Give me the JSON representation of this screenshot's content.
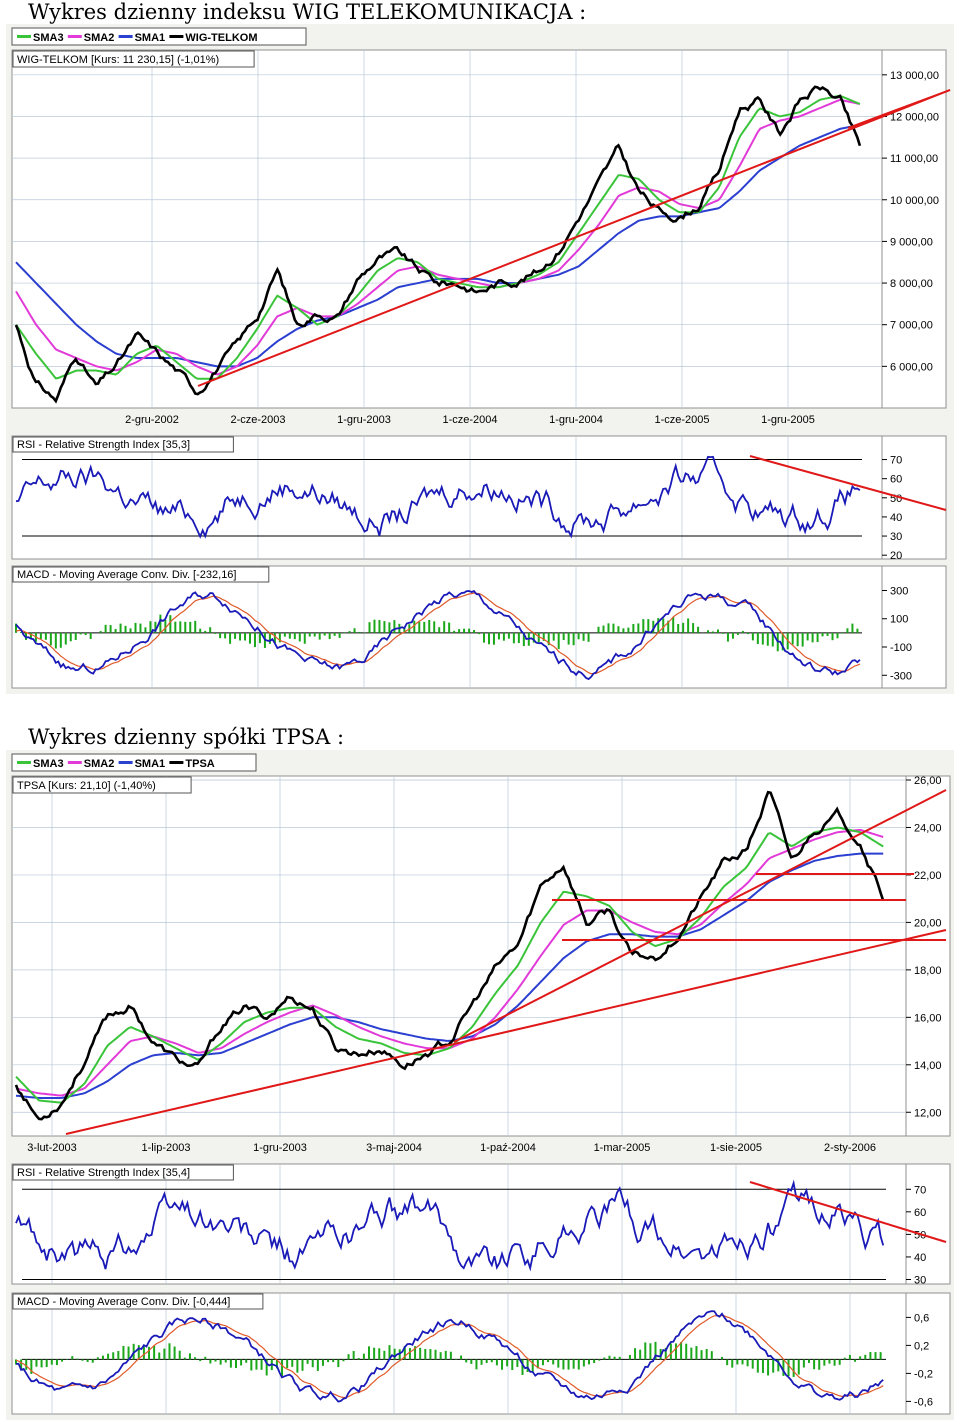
{
  "headings": {
    "wig": "Wykres dzienny indeksu WIG TELEKOMUNIKACJA :",
    "tpsa": "Wykres dzienny spółki TPSA :"
  },
  "colors": {
    "price": "#000000",
    "sma1": "#2b3fd0",
    "sma2": "#e23ad8",
    "sma3": "#3ac43a",
    "trendline": "#e01818",
    "rsi_line": "#1a1ab8",
    "macd_line": "#1a1ab8",
    "macd_signal": "#e05a2a",
    "histogram": "#1aa81a",
    "grid": "#b8c8d8"
  },
  "charts": [
    {
      "id": "wig",
      "legend": [
        "SMA3",
        "SMA2",
        "SMA1",
        "WIG-TELKOM"
      ],
      "price_label": "WIG-TELKOM [Kurs: 11 230,15] (-1,01%)",
      "y_ticks": [
        "13 000,00",
        "12 000,00",
        "11 000,00",
        "10 000,00",
        "9 000,00",
        "8 000,00",
        "7 000,00",
        "6 000,00"
      ],
      "x_ticks": [
        "2-gru-2002",
        "2-cze-2003",
        "1-gru-2003",
        "1-cze-2004",
        "1-gru-2004",
        "1-cze-2005",
        "1-gru-2005"
      ],
      "rsi_label": "RSI - Relative Strength Index [35,3]",
      "rsi_ticks": [
        "70",
        "60",
        "50",
        "40",
        "30",
        "20"
      ],
      "macd_label": "MACD - Moving Average Conv. Div. [-232,16]",
      "macd_ticks": [
        "300",
        "100",
        "-100",
        "-300"
      ]
    },
    {
      "id": "tpsa",
      "legend": [
        "SMA3",
        "SMA2",
        "SMA1",
        "TPSA"
      ],
      "price_label": "TPSA [Kurs: 21,10] (-1,40%)",
      "y_ticks": [
        "26,00",
        "24,00",
        "22,00",
        "20,00",
        "18,00",
        "16,00",
        "14,00",
        "12,00"
      ],
      "x_ticks": [
        "3-lut-2003",
        "1-lip-2003",
        "1-gru-2003",
        "3-maj-2004",
        "1-paź-2004",
        "1-mar-2005",
        "1-sie-2005",
        "2-sty-2006"
      ],
      "rsi_label": "RSI - Relative Strength Index [35,4]",
      "rsi_ticks": [
        "70",
        "60",
        "50",
        "40",
        "30"
      ],
      "macd_label": "MACD - Moving Average Conv. Div. [-0,444]",
      "macd_ticks": [
        "0,6",
        "0,2",
        "-0,2",
        "-0,6"
      ]
    }
  ],
  "chart_data": [
    {
      "type": "line",
      "title": "WIG-TELKOM [Kurs: 11 230,15] (-1,01%)",
      "x_ticks": [
        "2-gru-2002",
        "2-cze-2003",
        "1-gru-2003",
        "1-cze-2004",
        "1-gru-2004",
        "1-cze-2005",
        "1-gru-2005"
      ],
      "ylim": [
        5000,
        13500
      ],
      "x": [
        "2002-09",
        "2002-10",
        "2002-11",
        "2002-12",
        "2003-01",
        "2003-02",
        "2003-03",
        "2003-04",
        "2003-05",
        "2003-06",
        "2003-07",
        "2003-08",
        "2003-09",
        "2003-10",
        "2003-11",
        "2003-12",
        "2004-01",
        "2004-02",
        "2004-03",
        "2004-04",
        "2004-05",
        "2004-06",
        "2004-07",
        "2004-08",
        "2004-09",
        "2004-10",
        "2004-11",
        "2004-12",
        "2005-01",
        "2005-02",
        "2005-03",
        "2005-04",
        "2005-05",
        "2005-06",
        "2005-07",
        "2005-08",
        "2005-09",
        "2005-10",
        "2005-11",
        "2005-12",
        "2006-01",
        "2006-02",
        "2006-03"
      ],
      "series": [
        {
          "name": "WIG-TELKOM",
          "values": [
            7000,
            5600,
            5200,
            6300,
            5500,
            6000,
            6700,
            6300,
            5900,
            5400,
            6000,
            6500,
            7200,
            8300,
            7000,
            7300,
            7200,
            8100,
            8600,
            8700,
            8300,
            8000,
            8000,
            7800,
            8000,
            8100,
            8300,
            8800,
            9600,
            10400,
            11200,
            10200,
            9700,
            9600,
            9900,
            10700,
            12200,
            12400,
            11600,
            12400,
            12700,
            12400,
            11230
          ]
        },
        {
          "name": "SMA3",
          "values": [
            7000,
            6300,
            5700,
            5900,
            5900,
            5800,
            6300,
            6500,
            6100,
            5700,
            5700,
            6200,
            6900,
            7700,
            7400,
            7000,
            7200,
            7700,
            8300,
            8600,
            8500,
            8100,
            8000,
            7900,
            7900,
            8000,
            8200,
            8500,
            9200,
            9900,
            10600,
            10500,
            10000,
            9700,
            9700,
            10300,
            11500,
            12200,
            12000,
            12100,
            12400,
            12500,
            12300
          ]
        },
        {
          "name": "SMA2",
          "values": [
            7800,
            7000,
            6400,
            6200,
            6000,
            5900,
            6100,
            6400,
            6300,
            6000,
            5800,
            6000,
            6500,
            7200,
            7400,
            7200,
            7200,
            7500,
            7900,
            8300,
            8400,
            8200,
            8100,
            8000,
            7900,
            8000,
            8100,
            8300,
            8800,
            9400,
            10100,
            10300,
            10200,
            9900,
            9800,
            10000,
            10800,
            11700,
            11900,
            12000,
            12200,
            12400,
            12300
          ]
        },
        {
          "name": "SMA1",
          "values": [
            8500,
            8000,
            7500,
            7000,
            6600,
            6300,
            6200,
            6200,
            6200,
            6100,
            6000,
            6000,
            6200,
            6600,
            6900,
            7100,
            7200,
            7400,
            7600,
            7900,
            8000,
            8100,
            8100,
            8100,
            8000,
            8000,
            8100,
            8200,
            8400,
            8800,
            9200,
            9500,
            9600,
            9600,
            9700,
            9800,
            10200,
            10700,
            11000,
            11300,
            11500,
            11700,
            11800
          ]
        }
      ]
    },
    {
      "type": "line",
      "title": "TPSA [Kurs: 21,10] (-1,40%)",
      "x_ticks": [
        "3-lut-2003",
        "1-lip-2003",
        "1-gru-2003",
        "3-maj-2004",
        "1-paź-2004",
        "1-mar-2005",
        "1-sie-2005",
        "2-sty-2006"
      ],
      "ylim": [
        11,
        26
      ],
      "x": [
        "2003-01",
        "2003-02",
        "2003-03",
        "2003-04",
        "2003-05",
        "2003-06",
        "2003-07",
        "2003-08",
        "2003-09",
        "2003-10",
        "2003-11",
        "2003-12",
        "2004-01",
        "2004-02",
        "2004-03",
        "2004-04",
        "2004-05",
        "2004-06",
        "2004-07",
        "2004-08",
        "2004-09",
        "2004-10",
        "2004-11",
        "2004-12",
        "2005-01",
        "2005-02",
        "2005-03",
        "2005-04",
        "2005-05",
        "2005-06",
        "2005-07",
        "2005-08",
        "2005-09",
        "2005-10",
        "2005-11",
        "2005-12",
        "2006-01",
        "2006-02",
        "2006-03"
      ],
      "series": [
        {
          "name": "TPSA",
          "values": [
            13.2,
            11.7,
            12.5,
            14.2,
            16.0,
            16.5,
            15.0,
            14.2,
            13.8,
            15.6,
            16.4,
            16.0,
            16.9,
            16.4,
            14.7,
            14.5,
            14.7,
            14.0,
            14.5,
            15.0,
            16.5,
            18.0,
            19.0,
            21.5,
            22.5,
            20.0,
            20.5,
            18.5,
            18.5,
            19.5,
            21.0,
            22.5,
            23.0,
            25.5,
            22.5,
            24.0,
            24.5,
            23.5,
            21.1
          ]
        },
        {
          "name": "SMA3",
          "values": [
            13.5,
            12.5,
            12.4,
            13.2,
            14.8,
            15.6,
            15.2,
            14.7,
            14.2,
            14.9,
            15.8,
            16.2,
            16.4,
            16.4,
            15.6,
            15.1,
            14.9,
            14.5,
            14.4,
            14.7,
            15.6,
            17.0,
            18.2,
            20.0,
            21.3,
            21.1,
            20.7,
            19.6,
            19.0,
            19.3,
            20.2,
            21.5,
            22.3,
            23.8,
            23.2,
            23.8,
            24.0,
            23.8,
            23.2
          ]
        },
        {
          "name": "SMA2",
          "values": [
            13.0,
            12.8,
            12.7,
            13.0,
            14.0,
            15.0,
            15.2,
            14.9,
            14.5,
            14.7,
            15.3,
            15.8,
            16.2,
            16.5,
            16.1,
            15.6,
            15.2,
            14.9,
            14.7,
            14.7,
            15.1,
            16.0,
            17.2,
            18.6,
            19.9,
            20.5,
            20.5,
            20.0,
            19.6,
            19.5,
            19.9,
            20.8,
            21.6,
            22.7,
            23.1,
            23.5,
            23.8,
            23.9,
            23.6
          ]
        },
        {
          "name": "SMA1",
          "values": [
            12.7,
            12.6,
            12.6,
            12.8,
            13.3,
            14.0,
            14.4,
            14.5,
            14.4,
            14.5,
            14.9,
            15.3,
            15.7,
            16.0,
            16.0,
            15.8,
            15.5,
            15.3,
            15.1,
            15.0,
            15.2,
            15.7,
            16.5,
            17.5,
            18.5,
            19.2,
            19.5,
            19.5,
            19.4,
            19.4,
            19.7,
            20.3,
            20.9,
            21.7,
            22.2,
            22.6,
            22.8,
            22.9,
            22.9
          ]
        }
      ]
    }
  ]
}
